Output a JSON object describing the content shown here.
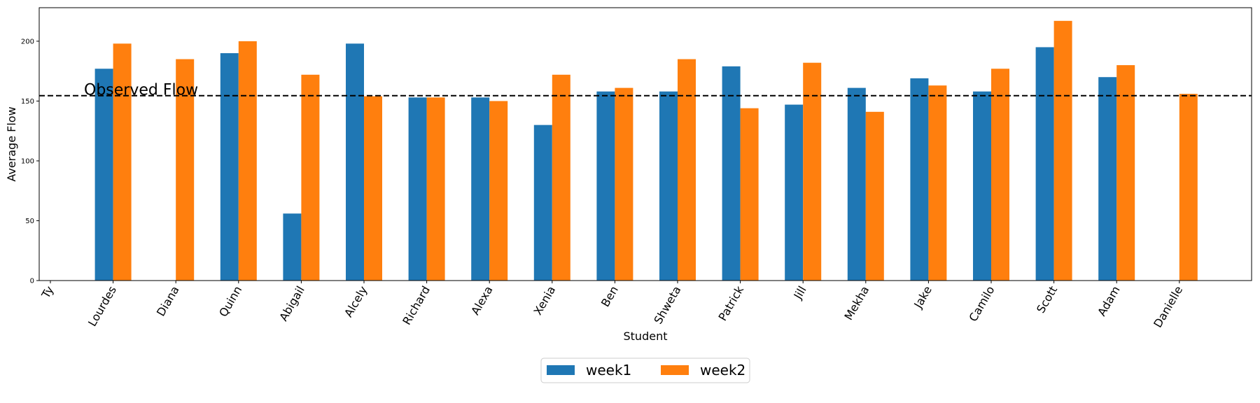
{
  "chart_data": {
    "type": "bar",
    "xlabel": "Student",
    "ylabel": "Average Flow",
    "ylim": [
      0,
      228
    ],
    "yticks": [
      0,
      50,
      100,
      150,
      200
    ],
    "categories": [
      "Ty",
      "Lourdes",
      "Diana",
      "Quinn",
      "Abigail",
      "Alcely",
      "Richard",
      "Alexa",
      "Xenia",
      "Ben",
      "Shweta",
      "Patrick",
      "Jill",
      "Mekha",
      "Jake",
      "Camilo",
      "Scott",
      "Adam",
      "Danielle"
    ],
    "series": [
      {
        "name": "week1",
        "color": "#1f77b4",
        "values": [
          null,
          177,
          null,
          190,
          56,
          198,
          153,
          153,
          130,
          158,
          158,
          179,
          147,
          161,
          169,
          158,
          195,
          170,
          null
        ]
      },
      {
        "name": "week2",
        "color": "#ff7f0e",
        "values": [
          null,
          198,
          185,
          200,
          172,
          154,
          153,
          150,
          172,
          161,
          185,
          144,
          182,
          141,
          163,
          177,
          217,
          180,
          156
        ]
      }
    ],
    "reference_line": {
      "value": 154.5,
      "label": "Observed Flow",
      "style": "dashed"
    },
    "legend": {
      "placement": "bottom-center",
      "entries": [
        "week1",
        "week2"
      ]
    },
    "grid": false
  }
}
